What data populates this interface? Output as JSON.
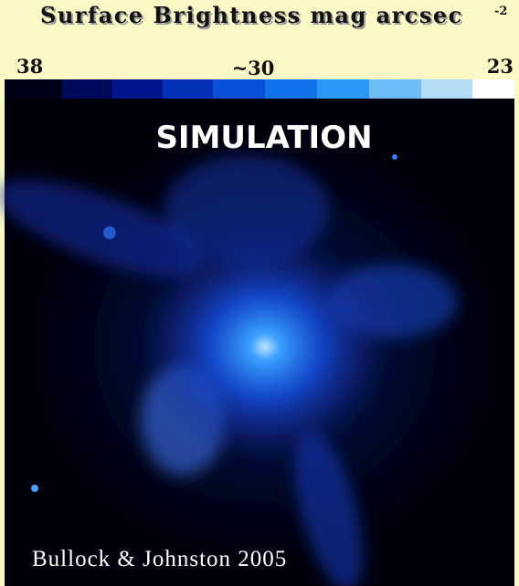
{
  "header": {
    "title": "Surface Brightness mag arcsec",
    "exponent": "-2"
  },
  "colorbar": {
    "labels": [
      "38",
      "~30",
      "23"
    ]
  },
  "image": {
    "label": "SIMULATION",
    "credit": "Bullock & Johnston 2005"
  }
}
